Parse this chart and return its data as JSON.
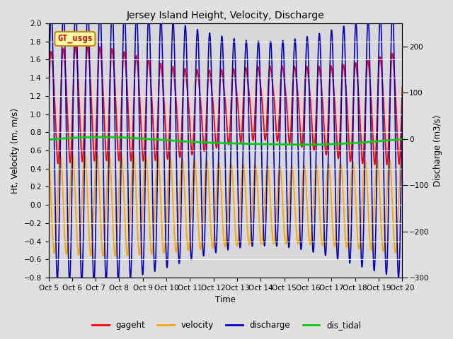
{
  "title": "Jersey Island Height, Velocity, Discharge",
  "xlabel": "Time",
  "ylabel_left": "Ht, Velocity (m, m/s)",
  "ylabel_right": "Discharge (m3/s)",
  "ylim_left": [
    -0.8,
    2.0
  ],
  "ylim_right": [
    -300,
    250
  ],
  "date_start": 5,
  "date_end": 20,
  "n_days": 15,
  "background_color": "#e0e0e0",
  "plot_bg_color": "#d8d8d8",
  "legend_labels": [
    "gageht",
    "velocity",
    "discharge",
    "dis_tidal"
  ],
  "legend_colors": [
    "#ff0000",
    "#ffa500",
    "#0000cc",
    "#00cc00"
  ],
  "gt_usgs_box_color": "#ffffaa",
  "gt_usgs_border_color": "#cc8800",
  "gt_usgs_text_color": "#cc0000",
  "tick_label_fontsize": 7.5,
  "axis_label_fontsize": 8.5,
  "title_fontsize": 10,
  "gageht_color": "#ff0000",
  "velocity_color": "#ffa500",
  "discharge_color": "#0000cc",
  "dis_tidal_color": "#00cc00",
  "gageht_lw": 1.4,
  "velocity_lw": 1.4,
  "discharge_lw": 1.2,
  "dis_tidal_lw": 2.0
}
